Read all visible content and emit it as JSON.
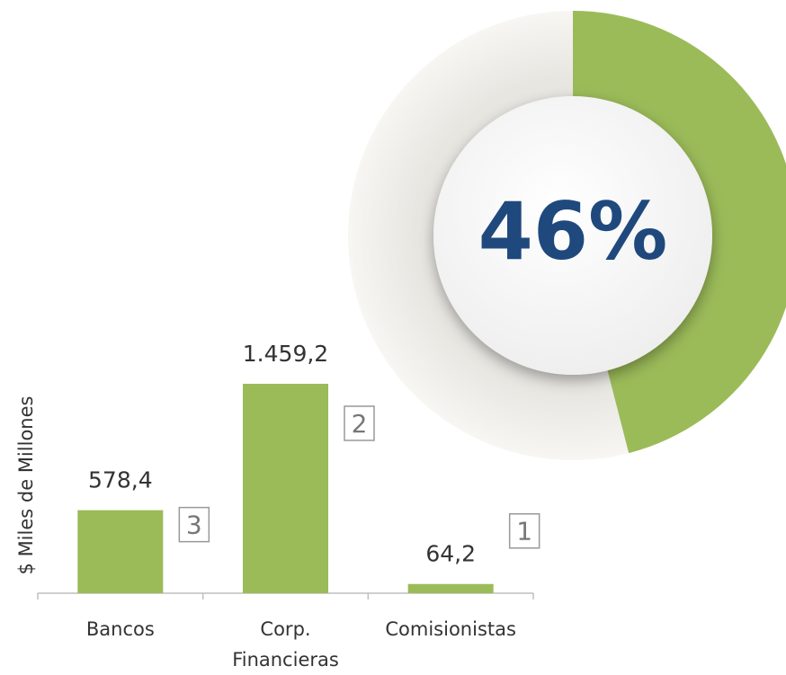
{
  "chart_data": [
    {
      "type": "bar",
      "y_label": "$ Miles de Millones",
      "categories": [
        "Bancos",
        "Corp. Financieras",
        "Comisionistas"
      ],
      "values": [
        578.4,
        1459.2,
        64.2
      ],
      "value_labels": [
        "578,4",
        "1.459,2",
        "64,2"
      ],
      "annotations": [
        3,
        2,
        1
      ],
      "color": "#9bbb59",
      "ylim": [
        0,
        1600
      ]
    },
    {
      "type": "donut",
      "values": [
        46
      ],
      "value_labels": [
        "46%"
      ],
      "total": 100,
      "color": "#9bbb59",
      "track_color": "#f2f1ee",
      "label_color": "#1f497d"
    }
  ]
}
